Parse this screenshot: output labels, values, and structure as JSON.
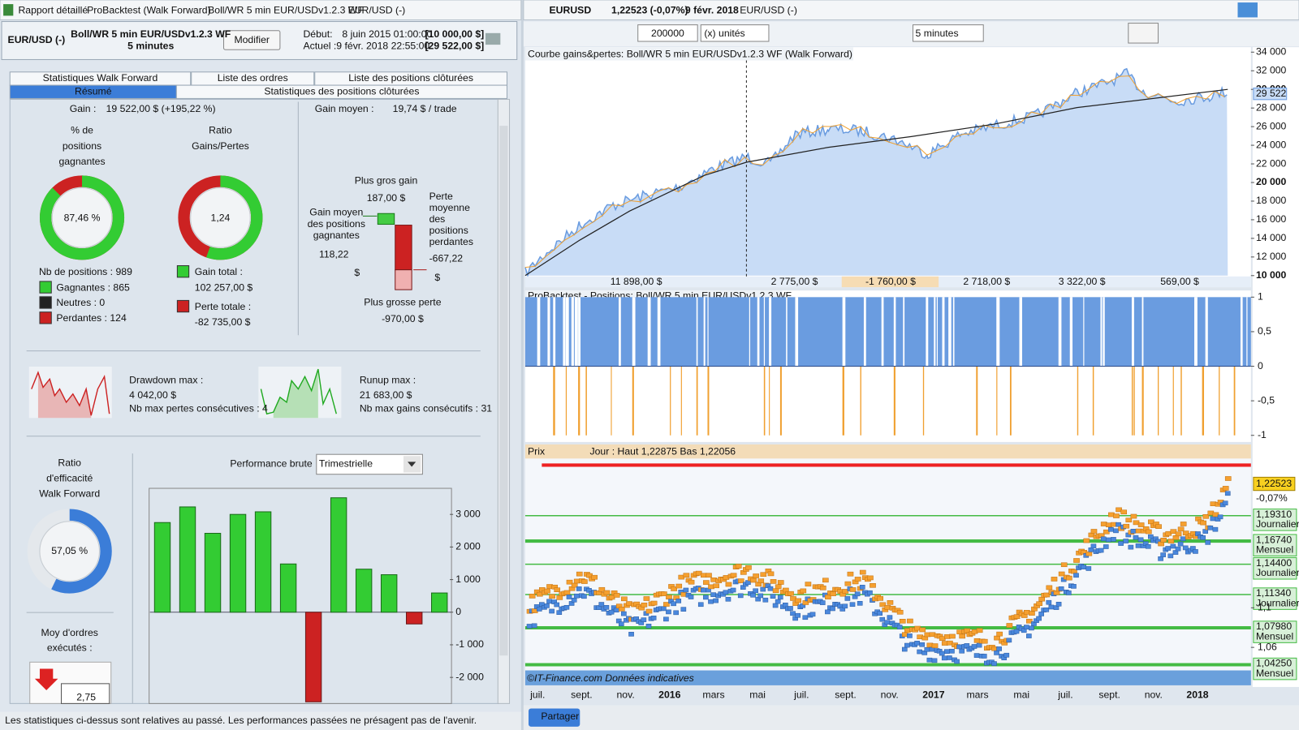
{
  "left": {
    "titlebar": [
      "Rapport détaillé",
      "ProBacktest (Walk Forward)",
      "Boll/WR 5 min EUR/USDv1.2.3 WF",
      "EUR/USD (-)"
    ],
    "header": {
      "instrument": "EUR/USD (-)",
      "strategy": "Boll/WR 5 min EUR/USDv1.2.3 WF",
      "timeframe": "5 minutes",
      "button": "Modifier",
      "start_label": "Début:",
      "start_date": "8 juin 2015 01:00:00",
      "start_value": "[10 000,00 $]",
      "current_label": "Actuel :",
      "current_date": "9 févr. 2018 22:55:00",
      "current_value": "[29 522,00 $]"
    },
    "tabs": [
      "Statistiques Walk Forward",
      "Liste des ordres",
      "Liste des positions clôturées",
      "Résumé",
      "Statistiques des positions clôturées"
    ],
    "gain_label": "Gain :",
    "gain_value": "19 522,00 $ (+195,22 %)",
    "avg_gain_label": "Gain moyen :",
    "avg_gain_value": "19,74 $ / trade",
    "win_rate": {
      "title": [
        "% de",
        "positions",
        "gagnantes"
      ],
      "value": 87.46,
      "label": "87,46 %"
    },
    "ratio": {
      "title": [
        "Ratio",
        "Gains/Pertes"
      ],
      "value": 1.24,
      "label": "1,24"
    },
    "positions": {
      "total": "Nb de positions : 989",
      "winners": "Gagnantes : 865",
      "neutral": "Neutres : 0",
      "losers": "Perdantes : 124"
    },
    "totals": {
      "gain_label": "Gain total :",
      "gain_value": "102 257,00 $",
      "loss_label": "Perte totale :",
      "loss_value": "-82 735,00 $"
    },
    "trade_box": {
      "max_gain_label": "Plus gros gain",
      "max_gain": "187,00 $",
      "avg_win_label": [
        "Gain moyen",
        "des positions",
        "gagnantes"
      ],
      "avg_win": [
        "118,22",
        "$"
      ],
      "avg_loss_label": [
        "Perte",
        "moyenne",
        "des",
        "positions",
        "perdantes"
      ],
      "avg_loss": [
        "-667,22",
        "$"
      ],
      "max_loss_label": "Plus grosse perte",
      "max_loss": "-970,00 $"
    },
    "drawdown": {
      "label": "Drawdown max :",
      "value": "4 042,00 $",
      "note": "Nb max pertes consécutives : 4"
    },
    "runup": {
      "label": "Runup max :",
      "value": "21 683,00 $",
      "note": "Nb max gains consécutifs : 31"
    },
    "wf_ratio": {
      "title": [
        "Ratio",
        "d'efficacité",
        "Walk Forward"
      ],
      "value": 57.05,
      "label": "57,05 %"
    },
    "orders": {
      "title": [
        "Moy d'ordres",
        "exécutés :"
      ],
      "value": "2,75"
    },
    "performance": {
      "title": "Performance brute",
      "period": "Trimestrielle",
      "values": [
        2750,
        3230,
        2420,
        3000,
        3080,
        1480,
        -2750,
        3510,
        1320,
        1150,
        -360,
        590
      ],
      "ylim": [
        -2750,
        3800
      ],
      "yticks": [
        {
          "value": 3000,
          "label": "3 000"
        },
        {
          "value": 2000,
          "label": "2 000"
        },
        {
          "value": 1000,
          "label": "1 000"
        },
        0,
        {
          "value": -1000,
          "label": "-1 000"
        },
        {
          "value": -2000,
          "label": "-2 000"
        }
      ]
    },
    "footer": "Les statistiques ci-dessus sont relatives au passé. Les performances passées ne présagent pas de l'avenir."
  },
  "right": {
    "titlebar": {
      "symbol": "EURUSD",
      "price": "1,22523 (-0,07%)",
      "date": "9 févr. 2018",
      "instrument": "EUR/USD (-)"
    },
    "toolbar": {
      "quantity": "200000",
      "units": "(x) unités",
      "timeframe": "5 minutes"
    },
    "equity": {
      "title": "Courbe gains&pertes: Boll/WR 5 min EUR/USDv1.2.3 WF (Walk Forward)",
      "ylim": [
        10000,
        34000
      ],
      "yticks": [
        {
          "value": 34000,
          "label": "34 000"
        },
        {
          "value": 32000,
          "label": "32 000"
        },
        {
          "value": 30000,
          "label": "30 000"
        },
        {
          "value": 28000,
          "label": "28 000"
        },
        {
          "value": 26000,
          "label": "26 000"
        },
        {
          "value": 24000,
          "label": "24 000"
        },
        {
          "value": 22000,
          "label": "22 000"
        },
        {
          "value": 20000,
          "label": "20 000"
        },
        {
          "value": 18000,
          "label": "18 000"
        },
        {
          "value": 16000,
          "label": "16 000"
        },
        {
          "value": 14000,
          "label": "14 000"
        },
        {
          "value": 12000,
          "label": "12 000"
        },
        {
          "value": 10000,
          "label": "10 000"
        }
      ],
      "last": {
        "value": 29522,
        "label": "29 522"
      },
      "segments": [
        "11 898,00 $",
        "2 775,00 $",
        "-1 760,00 $",
        "2 718,00 $",
        "3 322,00 $",
        "569,00 $"
      ]
    },
    "positions": {
      "title": "ProBacktest - Positions: Boll/WR 5 min EUR/USDv1.2.3 WF",
      "ylim": [
        -1,
        1
      ],
      "yticks": [
        1,
        {
          "value": 0.5,
          "label": "0,5"
        },
        0,
        {
          "value": -0.5,
          "label": "-0,5"
        },
        -1
      ]
    },
    "price": {
      "title": "Prix",
      "legend": "Jour : Haut 1,22875  Bas 1,22056",
      "ylim": [
        1.02,
        1.25
      ],
      "current": {
        "value": 1.22523,
        "label": "1,22523"
      },
      "change": "-0,07%",
      "levels": [
        {
          "value": 1.1931,
          "label": "1,19310",
          "period": "Journalier"
        },
        {
          "value": 1.1674,
          "label": "1,16740",
          "period": "Mensuel"
        },
        {
          "value": 1.144,
          "label": "1,14400",
          "period": "Journalier"
        },
        {
          "value": 1.1134,
          "label": "1,11340",
          "period": "Journalier"
        },
        {
          "value": 1.0798,
          "label": "1,07980",
          "period": "Mensuel"
        },
        {
          "value": 1.0425,
          "label": "1,04250",
          "period": "Mensuel"
        }
      ],
      "yticks": [
        {
          "value": 1.1,
          "label": "1,1"
        },
        {
          "value": 1.06,
          "label": "1,06"
        }
      ],
      "source": "©IT-Finance.com Données indicatives",
      "xlabels": [
        "juil.",
        "sept.",
        "nov.",
        "2016",
        "mars",
        "mai",
        "juil.",
        "sept.",
        "nov.",
        "2017",
        "mars",
        "mai",
        "juil.",
        "sept.",
        "nov.",
        "2018"
      ]
    },
    "share": "Partager"
  }
}
